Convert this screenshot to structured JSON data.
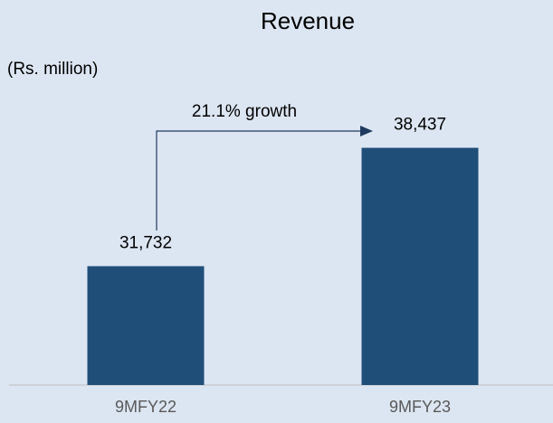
{
  "chart_data": {
    "type": "bar",
    "title": "Revenue",
    "subtitle": "(Rs. million)",
    "annotation": "21.1% growth",
    "categories": [
      "9MFY22",
      "9MFY23"
    ],
    "values": [
      31732,
      38437
    ],
    "value_labels": [
      "31,732",
      "38,437"
    ],
    "color": "#1f4e79",
    "ylim": [
      25000,
      40000
    ]
  }
}
